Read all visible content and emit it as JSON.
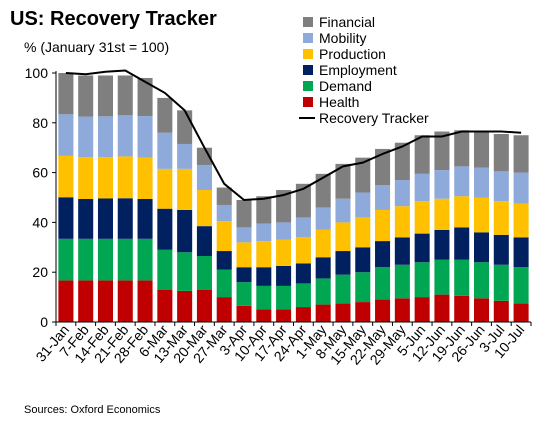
{
  "chart_data": {
    "type": "bar",
    "stacked": true,
    "title": "US: Recovery Tracker",
    "subtitle": "% (January 31st = 100)",
    "source": "Sources: Oxford Economics",
    "ylim": [
      0,
      100
    ],
    "yticks": [
      "0",
      "20",
      "40",
      "60",
      "80",
      "100"
    ],
    "grid": false,
    "legend_position": "top-right",
    "categories": [
      "31-Jan",
      "7-Feb",
      "14-Feb",
      "21-Feb",
      "28-Feb",
      "6-Mar",
      "13-Mar",
      "20-Mar",
      "27-Mar",
      "3-Apr",
      "10-Apr",
      "17-Apr",
      "24-Apr",
      "1-May",
      "8-May",
      "15-May",
      "22-May",
      "29-May",
      "5-Jun",
      "12-Jun",
      "19-Jun",
      "26-Jun",
      "3-Jul",
      "10-Jul"
    ],
    "series": [
      {
        "name": "Health",
        "color": "#c00000",
        "values": [
          16.7,
          16.7,
          16.7,
          16.7,
          16.7,
          13.0,
          12.5,
          13.0,
          10.0,
          6.5,
          5.0,
          5.0,
          6.0,
          7.0,
          7.5,
          8.0,
          9.0,
          9.5,
          10.0,
          11.0,
          10.5,
          9.5,
          8.5,
          7.5
        ]
      },
      {
        "name": "Demand",
        "color": "#00a651",
        "values": [
          16.7,
          16.7,
          16.7,
          16.7,
          16.7,
          16.0,
          15.5,
          13.5,
          11.0,
          9.5,
          9.5,
          9.5,
          9.5,
          10.5,
          11.5,
          12.0,
          13.0,
          13.5,
          14.0,
          14.0,
          14.5,
          14.5,
          14.5,
          14.5
        ]
      },
      {
        "name": "Employment",
        "color": "#002060",
        "values": [
          16.7,
          16.0,
          16.2,
          16.3,
          16.0,
          16.5,
          17.0,
          12.0,
          7.5,
          6.0,
          7.5,
          8.0,
          8.0,
          8.5,
          9.5,
          10.0,
          10.5,
          11.0,
          11.5,
          12.0,
          13.0,
          12.0,
          12.0,
          12.0
        ]
      },
      {
        "name": "Production",
        "color": "#ffc000",
        "values": [
          16.6,
          16.8,
          16.6,
          16.8,
          16.6,
          16.0,
          16.5,
          14.5,
          12.0,
          10.0,
          10.5,
          10.5,
          10.5,
          11.0,
          11.5,
          12.0,
          12.5,
          12.5,
          13.0,
          12.5,
          12.5,
          14.0,
          13.5,
          13.5
        ]
      },
      {
        "name": "Mobility",
        "color": "#8eaadb",
        "values": [
          16.7,
          16.3,
          16.4,
          16.5,
          16.7,
          14.5,
          10.0,
          10.0,
          6.5,
          6.0,
          7.0,
          7.0,
          8.0,
          9.0,
          9.5,
          10.0,
          10.0,
          10.5,
          11.0,
          11.5,
          12.0,
          12.0,
          12.0,
          12.5
        ]
      },
      {
        "name": "Financial",
        "color": "#7f7f7f",
        "values": [
          16.6,
          16.5,
          16.4,
          16.0,
          15.3,
          14.0,
          13.5,
          7.0,
          7.0,
          11.0,
          11.0,
          13.0,
          13.5,
          13.5,
          14.0,
          14.0,
          14.5,
          15.0,
          15.5,
          15.5,
          14.5,
          14.5,
          15.0,
          15.0
        ]
      }
    ],
    "line": {
      "name": "Recovery Tracker",
      "color": "#000000",
      "values": [
        100,
        99.5,
        100.5,
        101.0,
        96.5,
        92.0,
        85.0,
        70.0,
        55.5,
        49.0,
        49.5,
        51.0,
        53.5,
        58.0,
        62.5,
        64.0,
        67.5,
        70.5,
        74.5,
        74.5,
        76.5,
        76.5,
        76.5,
        76.0
      ]
    },
    "legend_order": [
      "Financial",
      "Mobility",
      "Production",
      "Employment",
      "Demand",
      "Health",
      "Recovery Tracker"
    ]
  }
}
